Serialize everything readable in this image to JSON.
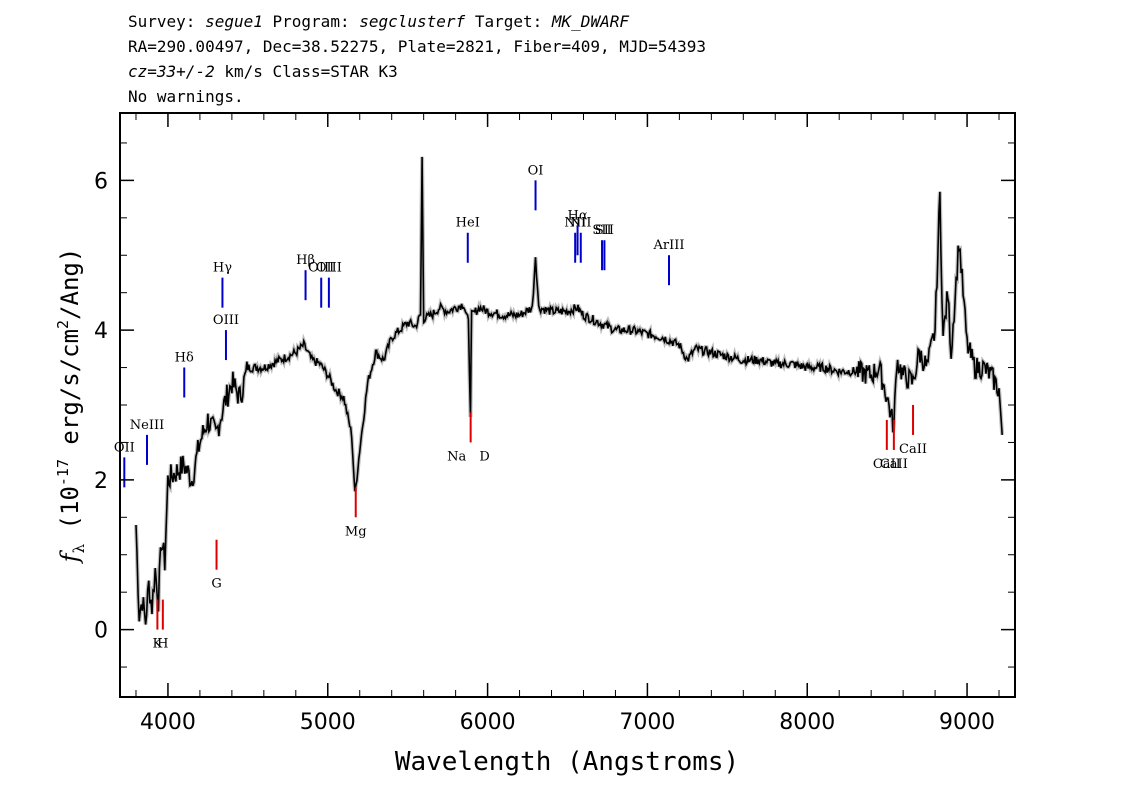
{
  "header": {
    "survey_label": "Survey:",
    "survey": "segue1",
    "program_label": "Program:",
    "program": "segclusterf",
    "target_label": "Target:",
    "target": "MK_DWARF",
    "line2": "RA=290.00497, Dec=38.52275, Plate=2821, Fiber=409, MJD=54393",
    "cz_label": "cz=",
    "cz_value": "33+/-2",
    "cz_rest": " km/s Class=STAR K3",
    "line4": "No warnings."
  },
  "chart_data": {
    "type": "line",
    "xlabel": "Wavelength (Angstroms)",
    "ylabel": "f_λ (10^-17 erg/s/cm^2/Ang)",
    "xlim": [
      3700,
      9300
    ],
    "ylim": [
      -0.9,
      6.9
    ],
    "x_ticks": [
      4000,
      5000,
      6000,
      7000,
      8000,
      9000
    ],
    "y_ticks": [
      0,
      2,
      4,
      6
    ],
    "colors": {
      "flux": "#000000",
      "error": "#bfbfbf",
      "emission": "#0000cc",
      "absorption": "#dd0000"
    },
    "series": [
      {
        "x": [
          3800,
          3820,
          3840,
          3860,
          3880,
          3900,
          3920,
          3940,
          3960,
          3980,
          4000,
          4050,
          4100,
          4150,
          4200,
          4250,
          4300,
          4350,
          4400,
          4450,
          4500,
          4600,
          4700,
          4800,
          4850,
          4900,
          4950,
          5000,
          5050,
          5100,
          5150,
          5170,
          5200,
          5250,
          5300,
          5350,
          5400,
          5450,
          5500,
          5550,
          5580,
          5590,
          5600,
          5650,
          5700,
          5750,
          5800,
          5850,
          5880,
          5893,
          5900,
          5950,
          6000,
          6100,
          6200,
          6280,
          6300,
          6320,
          6400,
          6500,
          6560,
          6600,
          6700,
          6800,
          6900,
          7000,
          7100,
          7200,
          7250,
          7300,
          7400,
          7500,
          7600,
          7700,
          7800,
          7900,
          8000,
          8100,
          8200,
          8300,
          8400,
          8450,
          8500,
          8542,
          8560,
          8600,
          8662,
          8700,
          8750,
          8800,
          8830,
          8850,
          8880,
          8900,
          8950,
          9000,
          9050,
          9100,
          9150,
          9200,
          9220
        ],
        "values": [
          1.4,
          0.2,
          0.4,
          0.1,
          0.6,
          0.3,
          0.8,
          0.4,
          1.2,
          0.9,
          2.0,
          2.1,
          2.2,
          2.0,
          2.5,
          2.8,
          2.6,
          3.0,
          3.3,
          3.1,
          3.5,
          3.5,
          3.6,
          3.7,
          3.8,
          3.6,
          3.55,
          3.4,
          3.2,
          3.1,
          2.6,
          1.8,
          2.4,
          3.3,
          3.7,
          3.6,
          3.9,
          4.0,
          4.1,
          4.05,
          4.2,
          6.3,
          4.15,
          4.2,
          4.3,
          4.25,
          4.3,
          4.35,
          4.1,
          2.9,
          4.2,
          4.3,
          4.25,
          4.2,
          4.2,
          4.3,
          5.0,
          4.3,
          4.25,
          4.25,
          4.3,
          4.2,
          4.1,
          4.0,
          4.0,
          3.95,
          3.9,
          3.8,
          3.6,
          3.75,
          3.7,
          3.65,
          3.6,
          3.6,
          3.55,
          3.55,
          3.5,
          3.5,
          3.45,
          3.45,
          3.4,
          3.5,
          3.1,
          2.7,
          3.6,
          3.4,
          3.3,
          3.7,
          3.5,
          4.0,
          5.8,
          3.9,
          4.5,
          3.7,
          5.2,
          3.8,
          3.5,
          3.5,
          3.4,
          3.2,
          2.6
        ]
      }
    ],
    "lines": [
      {
        "label": "OII",
        "x": 3727,
        "kind": "emission",
        "y": 1.9
      },
      {
        "label": "NeIII",
        "x": 3869,
        "kind": "emission",
        "y": 2.2
      },
      {
        "label": "Hδ",
        "x": 4102,
        "kind": "emission",
        "y": 3.1
      },
      {
        "label": "Hγ",
        "x": 4341,
        "kind": "emission",
        "y": 4.3
      },
      {
        "label": "OIII",
        "x": 4363,
        "kind": "emission",
        "y": 3.6
      },
      {
        "label": "Hβ",
        "x": 4861,
        "kind": "emission",
        "y": 4.4
      },
      {
        "label": "OIII",
        "x": 4959,
        "kind": "emission",
        "y": 4.3
      },
      {
        "label": "OIII",
        "x": 5007,
        "kind": "emission",
        "y": 4.3
      },
      {
        "label": "HeI",
        "x": 5876,
        "kind": "emission",
        "y": 4.9
      },
      {
        "label": "OI",
        "x": 6300,
        "kind": "emission",
        "y": 5.6
      },
      {
        "label": "NII",
        "x": 6548,
        "kind": "emission",
        "y": 4.9
      },
      {
        "label": "Hα",
        "x": 6563,
        "kind": "emission",
        "y": 5.0
      },
      {
        "label": "NII",
        "x": 6583,
        "kind": "emission",
        "y": 4.9
      },
      {
        "label": "SII",
        "x": 6716,
        "kind": "emission",
        "y": 4.8
      },
      {
        "label": "SII",
        "x": 6731,
        "kind": "emission",
        "y": 4.8
      },
      {
        "label": "ArIII",
        "x": 7135,
        "kind": "emission",
        "y": 4.6
      },
      {
        "label": "K",
        "x": 3934,
        "kind": "absorption",
        "y": 0.0
      },
      {
        "label": "H",
        "x": 3968,
        "kind": "absorption",
        "y": 0.0
      },
      {
        "label": "G",
        "x": 4304,
        "kind": "absorption",
        "y": 0.8
      },
      {
        "label": "Mg",
        "x": 5175,
        "kind": "absorption",
        "y": 1.5
      },
      {
        "label": "Na",
        "x": 5894,
        "kind": "absorption",
        "y": 2.5
      },
      {
        "label": "D",
        "x": 5894,
        "kind": "absorption",
        "y": 2.5
      },
      {
        "label": "CaII",
        "x": 8498,
        "kind": "absorption",
        "y": 2.4
      },
      {
        "label": "CaII",
        "x": 8542,
        "kind": "absorption",
        "y": 2.4
      },
      {
        "label": "CaII",
        "x": 8662,
        "kind": "absorption",
        "y": 2.6
      }
    ]
  }
}
